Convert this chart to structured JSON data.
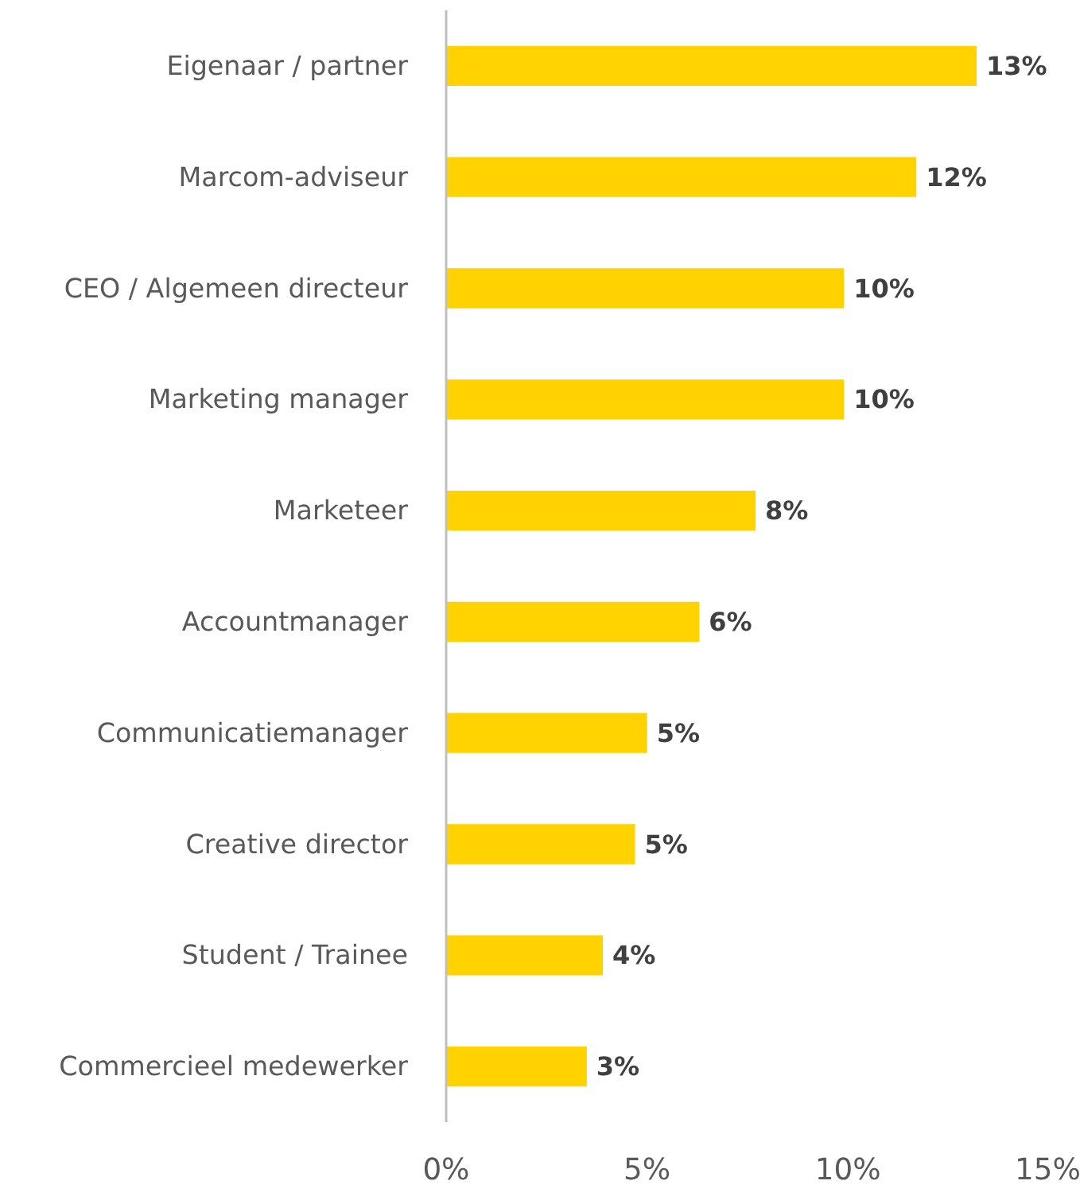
{
  "chart_data": {
    "type": "bar",
    "orientation": "horizontal",
    "categories": [
      "Eigenaar / partner",
      "Marcom-adviseur",
      "CEO / Algemeen directeur",
      "Marketing manager",
      "Marketeer",
      "Accountmanager",
      "Communicatiemanager",
      "Creative director",
      "Student / Trainee",
      "Commercieel medewerker"
    ],
    "values": [
      13.2,
      11.7,
      9.9,
      9.9,
      7.7,
      6.3,
      5.0,
      4.7,
      3.9,
      3.5
    ],
    "value_labels": [
      "13%",
      "12%",
      "10%",
      "10%",
      "8%",
      "6%",
      "5%",
      "5%",
      "4%",
      "3%"
    ],
    "color": "#ffd200",
    "xlim": [
      0,
      15
    ],
    "xticks": [
      {
        "value": 0,
        "label": "0%"
      },
      {
        "value": 5,
        "label": "5%"
      },
      {
        "value": 10,
        "label": "10%"
      },
      {
        "value": 15,
        "label": "15%"
      }
    ],
    "grid": false
  }
}
